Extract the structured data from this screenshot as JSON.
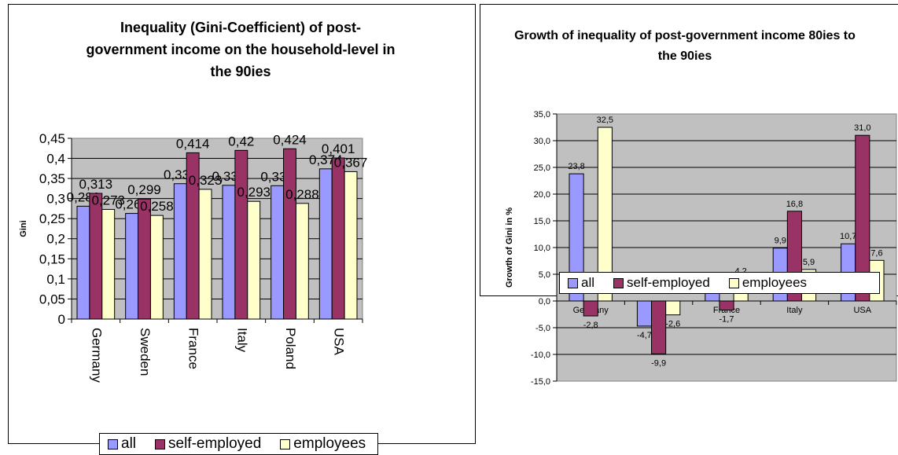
{
  "colors": {
    "all": "#9999ff",
    "self": "#993366",
    "employees": "#ffffcc",
    "plot_bg": "#c0c0c0"
  },
  "chart_data": [
    {
      "type": "bar",
      "title": "Inequality (Gini-Coefficient) of post-government income on the household-level in the 90ies",
      "xlabel": "",
      "ylabel": "Gini",
      "categories": [
        "Germany",
        "Sweden",
        "France",
        "Italy",
        "Poland",
        "USA"
      ],
      "ylim": [
        0,
        0.45
      ],
      "yticks": [
        "0",
        "0,05",
        "0,1",
        "0,15",
        "0,2",
        "0,25",
        "0,3",
        "0,35",
        "0,4",
        "0,45"
      ],
      "series": [
        {
          "name": "all",
          "values": [
            0.281,
            0.263,
            0.337,
            0.333,
            0.332,
            0.374
          ],
          "labels": [
            "0,281",
            "0,263",
            "0,337",
            "0,333",
            "0,332",
            "0,374"
          ]
        },
        {
          "name": "self-employed",
          "values": [
            0.313,
            0.299,
            0.414,
            0.42,
            0.424,
            0.401
          ],
          "labels": [
            "0,313",
            "0,299",
            "0,414",
            "0,42",
            "0,424",
            "0,401"
          ]
        },
        {
          "name": "employees",
          "values": [
            0.273,
            0.258,
            0.323,
            0.293,
            0.288,
            0.367
          ],
          "labels": [
            "0,273",
            "0,258",
            "0,323",
            "0,293",
            "0,288",
            "0,367"
          ]
        }
      ],
      "grid": true,
      "legend": "bottom"
    },
    {
      "type": "bar",
      "title": "Growth of inequality of post-government income 80ies to the 90ies",
      "xlabel": "",
      "ylabel": "Growth of Gini in %",
      "categories": [
        "Germany",
        "Sweden",
        "France",
        "Italy",
        "USA"
      ],
      "ylim": [
        -15,
        35
      ],
      "yticks": [
        "-15,0",
        "-10,0",
        "-5,0",
        "0,0",
        "5,0",
        "10,0",
        "15,0",
        "20,0",
        "25,0",
        "30,0",
        "35,0"
      ],
      "series": [
        {
          "name": "all",
          "values": [
            23.8,
            -4.7,
            1.8,
            9.9,
            10.7
          ],
          "labels": [
            "23,8",
            "-4,7",
            "1,8",
            "9,9",
            "10,7"
          ]
        },
        {
          "name": "self-employed",
          "values": [
            -2.8,
            -9.9,
            -1.7,
            16.8,
            31.0
          ],
          "labels": [
            "-2,8",
            "-9,9",
            "-1,7",
            "16,8",
            "31,0"
          ]
        },
        {
          "name": "employees",
          "values": [
            32.5,
            -2.6,
            4.2,
            5.9,
            7.6
          ],
          "labels": [
            "32,5",
            "-2,6",
            "4,2",
            "5,9",
            "7,6"
          ]
        }
      ],
      "grid": true,
      "legend": "bottom"
    }
  ]
}
